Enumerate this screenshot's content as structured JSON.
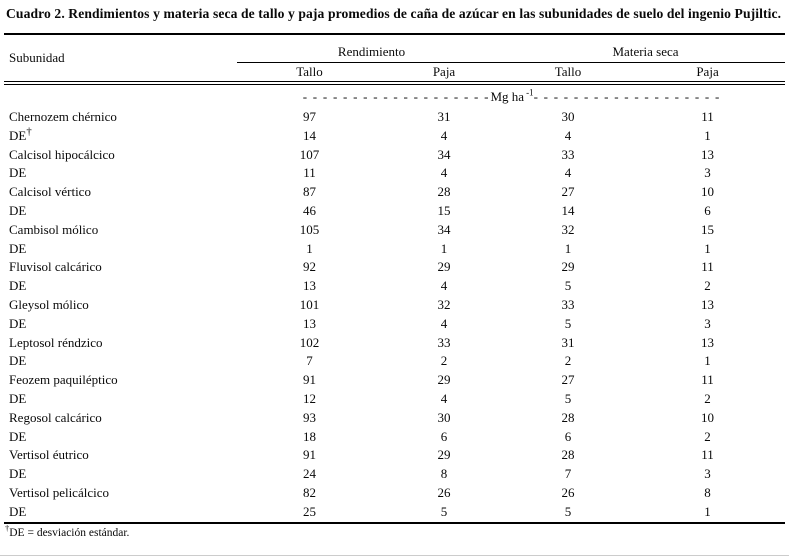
{
  "title": "Cuadro 2. Rendimientos y materia  seca de tallo y paja promedios de caña de azúcar en las subunidades de suelo del ingenio Pujiltic.",
  "table": {
    "row_header": "Subunidad",
    "spanners": [
      {
        "label": "Rendimiento"
      },
      {
        "label": "Materia seca"
      }
    ],
    "sub_headers": [
      "Tallo",
      "Paja",
      "Tallo",
      "Paja"
    ],
    "units": {
      "dashes_left": "- - - - - - - - - - - - - - - - - - -",
      "unit": "Mg ha",
      "exponent": "-1",
      "dashes_right": "- - - - - - - - - - - - - - - - - - -"
    },
    "rows": [
      {
        "name": "Chernozem chérnico",
        "values": [
          "97",
          "31",
          "30",
          "11"
        ]
      },
      {
        "name": "DE",
        "sup": "†",
        "values": [
          "14",
          "4",
          "4",
          "1"
        ]
      },
      {
        "name": "Calcisol hipocálcico",
        "values": [
          "107",
          "34",
          "33",
          "13"
        ]
      },
      {
        "name": "DE",
        "values": [
          "11",
          "4",
          "4",
          "3"
        ]
      },
      {
        "name": "Calcisol vértico",
        "values": [
          "87",
          "28",
          "27",
          "10"
        ]
      },
      {
        "name": "DE",
        "values": [
          "46",
          "15",
          "14",
          "6"
        ]
      },
      {
        "name": "Cambisol mólico",
        "values": [
          "105",
          "34",
          "32",
          "15"
        ]
      },
      {
        "name": "DE",
        "values": [
          "1",
          "1",
          "1",
          "1"
        ]
      },
      {
        "name": "Fluvisol calcárico",
        "values": [
          "92",
          "29",
          "29",
          "11"
        ]
      },
      {
        "name": "DE",
        "values": [
          "13",
          "4",
          "5",
          "2"
        ]
      },
      {
        "name": "Gleysol mólico",
        "values": [
          "101",
          "32",
          "33",
          "13"
        ]
      },
      {
        "name": "DE",
        "values": [
          "13",
          "4",
          "5",
          "3"
        ]
      },
      {
        "name": "Leptosol réndzico",
        "values": [
          "102",
          "33",
          "31",
          "13"
        ]
      },
      {
        "name": "DE",
        "values": [
          "7",
          "2",
          "2",
          "1"
        ]
      },
      {
        "name": "Feozem paquiléptico",
        "values": [
          "91",
          "29",
          "27",
          "11"
        ]
      },
      {
        "name": "DE",
        "values": [
          "12",
          "4",
          "5",
          "2"
        ]
      },
      {
        "name": "Regosol calcárico",
        "values": [
          "93",
          "30",
          "28",
          "10"
        ]
      },
      {
        "name": "DE",
        "values": [
          "18",
          "6",
          "6",
          "2"
        ]
      },
      {
        "name": "Vertisol éutrico",
        "values": [
          "91",
          "29",
          "28",
          "11"
        ]
      },
      {
        "name": "DE",
        "values": [
          "24",
          "8",
          "7",
          "3"
        ]
      },
      {
        "name": "Vertisol pelicálcico",
        "values": [
          "82",
          "26",
          "26",
          "8"
        ]
      },
      {
        "name": "DE",
        "values": [
          "25",
          "5",
          "5",
          "1"
        ]
      }
    ],
    "footnote": {
      "sup": "†",
      "text": "DE = desviación estándar."
    }
  }
}
